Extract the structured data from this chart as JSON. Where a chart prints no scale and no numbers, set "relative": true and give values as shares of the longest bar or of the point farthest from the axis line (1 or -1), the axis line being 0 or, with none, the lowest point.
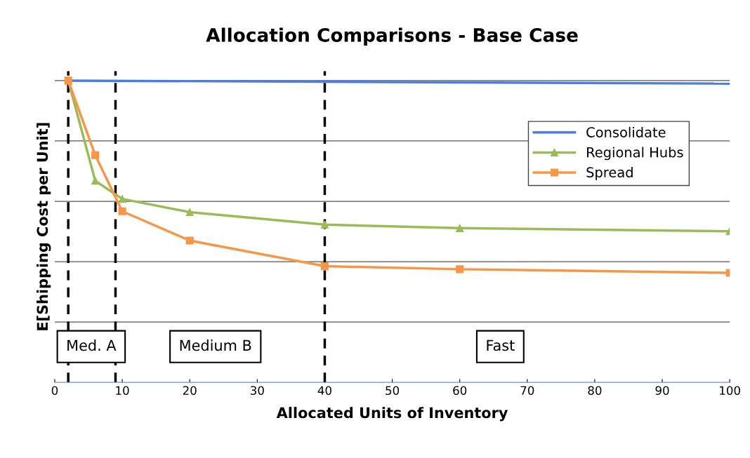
{
  "chart_data": {
    "type": "line",
    "title": "Allocation Comparisons - Base Case",
    "xlabel": "Allocated Units of Inventory",
    "ylabel": "E[Shipping Cost per Unit]",
    "relative": true,
    "xlim": [
      0,
      100
    ],
    "xticks": [
      0,
      10,
      20,
      30,
      40,
      50,
      60,
      70,
      80,
      90,
      100
    ],
    "series": [
      {
        "name": "Consolidate",
        "color": "#4a7ee0",
        "marker": "none",
        "x": [
          2,
          100
        ],
        "values": [
          1.0,
          0.99
        ]
      },
      {
        "name": "Regional Hubs",
        "color": "#9bbb59",
        "marker": "triangle",
        "x": [
          2,
          6,
          10,
          20,
          40,
          60,
          100
        ],
        "values": [
          1.0,
          0.668,
          0.608,
          0.564,
          0.523,
          0.511,
          0.501
        ]
      },
      {
        "name": "Spread",
        "color": "#f79646",
        "marker": "square",
        "x": [
          2,
          6,
          10,
          20,
          40,
          60,
          100
        ],
        "values": [
          1.0,
          0.753,
          0.567,
          0.47,
          0.385,
          0.375,
          0.363
        ]
      }
    ],
    "ref_lines": [
      {
        "axis": "x",
        "value": 2,
        "color": "#000000",
        "line_style": "dashed"
      },
      {
        "axis": "x",
        "value": 9,
        "color": "#000000",
        "line_style": "dashed"
      },
      {
        "axis": "x",
        "value": 40,
        "color": "#000000",
        "line_style": "dashed"
      }
    ],
    "annotations": [
      "Med. A",
      "Medium B",
      "Fast"
    ],
    "grid": "y",
    "legend": "upper right"
  }
}
